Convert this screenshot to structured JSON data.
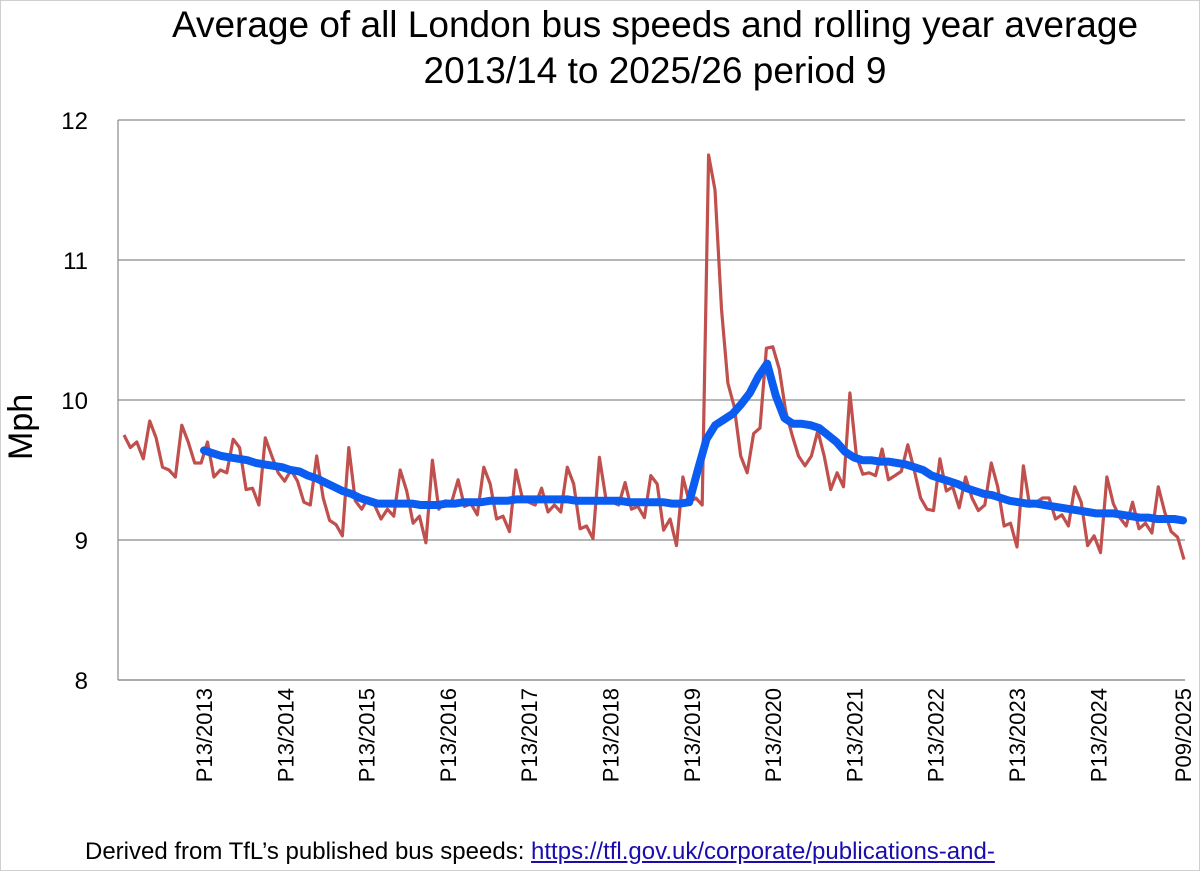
{
  "chart_data": {
    "type": "line",
    "title": "Average of all London bus speeds and rolling year average",
    "subtitle": "2013/14 to 2025/26 period 9",
    "ylabel": "Mph",
    "xlabel": "",
    "ylim": [
      8,
      12
    ],
    "yticks": [
      "8",
      "9",
      "10",
      "11",
      "12"
    ],
    "grid": true,
    "xtick_labels": [
      "P13/2013",
      "P13/2014",
      "P13/2015",
      "P13/2016",
      "P13/2017",
      "P13/2018",
      "P13/2019",
      "P13/2020",
      "P13/2021",
      "P13/2022",
      "P13/2023",
      "P13/2024",
      "P09/2025"
    ],
    "series": [
      {
        "color": "#c0504d",
        "values": [
          9.75,
          9.66,
          9.7,
          9.58,
          9.85,
          9.73,
          9.52,
          9.5,
          9.45,
          9.82,
          9.7,
          9.55,
          9.55,
          9.7,
          9.45,
          9.5,
          9.48,
          9.72,
          9.66,
          9.36,
          9.37,
          9.25,
          9.73,
          9.6,
          9.48,
          9.42,
          9.5,
          9.42,
          9.27,
          9.25,
          9.6,
          9.3,
          9.14,
          9.11,
          9.03,
          9.66,
          9.28,
          9.22,
          9.3,
          9.25,
          9.15,
          9.22,
          9.17,
          9.5,
          9.35,
          9.12,
          9.17,
          8.98,
          9.57,
          9.22,
          9.28,
          9.27,
          9.43,
          9.24,
          9.26,
          9.18,
          9.52,
          9.4,
          9.15,
          9.17,
          9.06,
          9.5,
          9.3,
          9.27,
          9.25,
          9.37,
          9.2,
          9.25,
          9.2,
          9.52,
          9.4,
          9.08,
          9.1,
          9.01,
          9.59,
          9.3,
          9.27,
          9.25,
          9.41,
          9.22,
          9.24,
          9.16,
          9.46,
          9.4,
          9.07,
          9.15,
          8.96,
          9.45,
          9.27,
          9.3,
          9.25,
          11.75,
          11.5,
          10.65,
          10.12,
          9.95,
          9.6,
          9.48,
          9.76,
          9.8,
          10.37,
          10.38,
          10.22,
          9.92,
          9.75,
          9.6,
          9.53,
          9.6,
          9.78,
          9.6,
          9.36,
          9.48,
          9.38,
          10.05,
          9.6,
          9.47,
          9.48,
          9.46,
          9.65,
          9.43,
          9.46,
          9.49,
          9.68,
          9.5,
          9.3,
          9.22,
          9.21,
          9.58,
          9.35,
          9.38,
          9.23,
          9.45,
          9.3,
          9.21,
          9.25,
          9.55,
          9.38,
          9.1,
          9.12,
          8.95,
          9.53,
          9.24,
          9.27,
          9.3,
          9.3,
          9.15,
          9.18,
          9.1,
          9.38,
          9.27,
          8.96,
          9.03,
          8.91,
          9.45,
          9.26,
          9.16,
          9.1,
          9.27,
          9.08,
          9.12,
          9.05,
          9.38,
          9.2,
          9.06,
          9.02,
          8.86
        ]
      },
      {
        "color": "#0a5df0",
        "values": [
          9.64,
          9.62,
          9.6,
          9.59,
          9.58,
          9.57,
          9.55,
          9.54,
          9.53,
          9.52,
          9.5,
          9.49,
          9.46,
          9.44,
          9.41,
          9.38,
          9.35,
          9.33,
          9.3,
          9.28,
          9.26,
          9.26,
          9.26,
          9.26,
          9.26,
          9.25,
          9.25,
          9.25,
          9.26,
          9.26,
          9.27,
          9.27,
          9.27,
          9.28,
          9.28,
          9.28,
          9.29,
          9.29,
          9.29,
          9.29,
          9.29,
          9.29,
          9.29,
          9.28,
          9.28,
          9.28,
          9.28,
          9.28,
          9.28,
          9.27,
          9.27,
          9.27,
          9.27,
          9.27,
          9.26,
          9.26,
          9.27,
          9.5,
          9.72,
          9.82,
          9.86,
          9.9,
          9.97,
          10.05,
          10.17,
          10.26,
          10.03,
          9.87,
          9.83,
          9.83,
          9.82,
          9.8,
          9.75,
          9.7,
          9.63,
          9.59,
          9.57,
          9.57,
          9.56,
          9.56,
          9.55,
          9.54,
          9.52,
          9.5,
          9.46,
          9.44,
          9.42,
          9.4,
          9.37,
          9.35,
          9.33,
          9.32,
          9.3,
          9.28,
          9.27,
          9.26,
          9.26,
          9.25,
          9.24,
          9.23,
          9.22,
          9.21,
          9.2,
          9.19,
          9.19,
          9.19,
          9.18,
          9.17,
          9.16,
          9.16,
          9.15,
          9.15,
          9.15,
          9.14
        ]
      }
    ]
  },
  "footer": {
    "text": "Derived from TfL’s published bus speeds: ",
    "link": "https://tfl.gov.uk/corporate/publications-and-"
  }
}
